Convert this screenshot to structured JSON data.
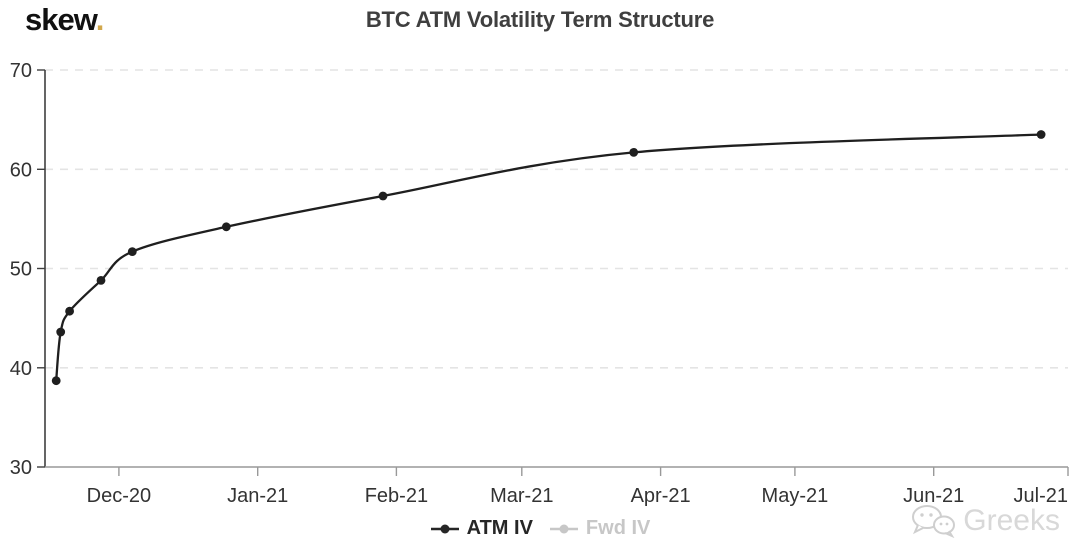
{
  "logo": {
    "text": "skew",
    "dot": "."
  },
  "title": "BTC ATM Volatility Term Structure",
  "legend": {
    "items": [
      {
        "label": "ATM IV",
        "color": "#262626",
        "active": true
      },
      {
        "label": "Fwd IV",
        "color": "#c7c7c7",
        "active": false
      }
    ]
  },
  "watermark": {
    "text": "Greeks",
    "icon": "wechat-icon"
  },
  "colors": {
    "line": "#1f1f1f",
    "marker": "#1f1f1f",
    "grid": "#e4e4e4",
    "y_axis": "#3f3f3f",
    "x_axis": "#999999",
    "axis_label": "#333333",
    "title": "#3f3f3f",
    "logo_text": "#111111",
    "logo_dot": "#d2a84c",
    "watermark": "#d8d8d8"
  },
  "chart_data": {
    "type": "line",
    "title": "BTC ATM Volatility Term Structure",
    "x": [
      "2020-11-17",
      "2020-11-18",
      "2020-11-20",
      "2020-11-27",
      "2020-12-04",
      "2020-12-25",
      "2021-01-29",
      "2021-03-26",
      "2021-06-25"
    ],
    "series": [
      {
        "name": "ATM IV",
        "values": [
          38.7,
          43.6,
          45.7,
          48.8,
          51.7,
          54.2,
          57.3,
          61.7,
          63.5
        ],
        "visible": true
      },
      {
        "name": "Fwd IV",
        "values": [],
        "visible": false
      }
    ],
    "xlabel": "",
    "ylabel": "",
    "ylim": [
      30,
      70
    ],
    "y_ticks": [
      30,
      40,
      50,
      60,
      70
    ],
    "xlim": [
      "2020-11-14",
      "2021-07-01"
    ],
    "x_ticks": [
      {
        "date": "2020-12-01",
        "label": "Dec-20"
      },
      {
        "date": "2021-01-01",
        "label": "Jan-21"
      },
      {
        "date": "2021-02-01",
        "label": "Feb-21"
      },
      {
        "date": "2021-03-01",
        "label": "Mar-21"
      },
      {
        "date": "2021-04-01",
        "label": "Apr-21"
      },
      {
        "date": "2021-05-01",
        "label": "May-21"
      },
      {
        "date": "2021-06-01",
        "label": "Jun-21"
      },
      {
        "date": "2021-07-01",
        "label": "Jul-21"
      }
    ],
    "grid": "horizontal-dashed",
    "legend_position": "bottom-center"
  }
}
